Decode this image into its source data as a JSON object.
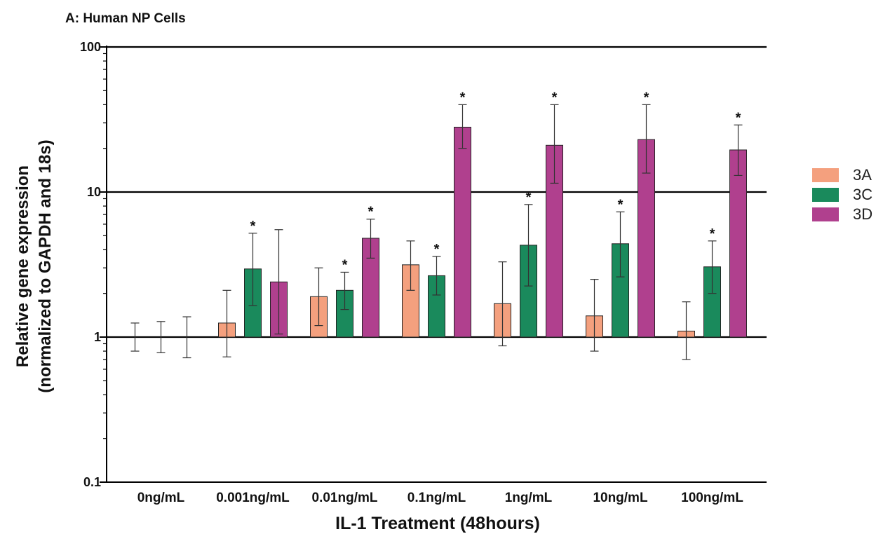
{
  "chart_data": {
    "type": "bar",
    "title": "A: Human NP Cells",
    "xlabel": "IL-1 Treatment (48hours)",
    "ylabel_line1": "Relative gene expression",
    "ylabel_line2": "(normalized to GAPDH and 18s)",
    "yscale": "log",
    "ylim": [
      0.1,
      100
    ],
    "yticks": [
      0.1,
      1,
      10,
      100
    ],
    "ytick_labels": [
      "0.1",
      "1",
      "10",
      "100"
    ],
    "grid": "horizontal lines at 1, 10, 100",
    "legend_position": "right",
    "categories": [
      "0ng/mL",
      "0.001ng/mL",
      "0.01ng/mL",
      "0.1ng/mL",
      "1ng/mL",
      "10ng/mL",
      "100ng/mL"
    ],
    "series": [
      {
        "name": "3A",
        "color": "#f4a07e",
        "values": [
          1.0,
          1.25,
          1.9,
          3.15,
          1.7,
          1.4,
          1.1
        ],
        "err_low": [
          0.8,
          0.73,
          1.2,
          2.1,
          0.87,
          0.8,
          0.7
        ],
        "err_high": [
          1.25,
          2.1,
          3.0,
          4.6,
          3.3,
          2.5,
          1.75
        ],
        "significant": [
          false,
          false,
          false,
          false,
          false,
          false,
          false
        ]
      },
      {
        "name": "3C",
        "color": "#1a8a5c",
        "values": [
          1.0,
          2.95,
          2.1,
          2.65,
          4.3,
          4.4,
          3.05
        ],
        "err_low": [
          0.78,
          1.65,
          1.55,
          1.95,
          2.25,
          2.6,
          2.0
        ],
        "err_high": [
          1.28,
          5.2,
          2.8,
          3.6,
          8.2,
          7.3,
          4.6
        ],
        "significant": [
          false,
          true,
          true,
          true,
          true,
          true,
          true
        ]
      },
      {
        "name": "3D",
        "color": "#b0408e",
        "values": [
          1.0,
          2.4,
          4.8,
          28.0,
          21.0,
          23.0,
          19.5
        ],
        "err_low": [
          0.72,
          1.05,
          3.5,
          20.0,
          11.5,
          13.5,
          13.0
        ],
        "err_high": [
          1.38,
          5.5,
          6.5,
          40.0,
          40.0,
          40.0,
          29.0
        ],
        "significant": [
          false,
          false,
          true,
          true,
          true,
          true,
          true
        ]
      }
    ],
    "significance_marker": "*"
  }
}
